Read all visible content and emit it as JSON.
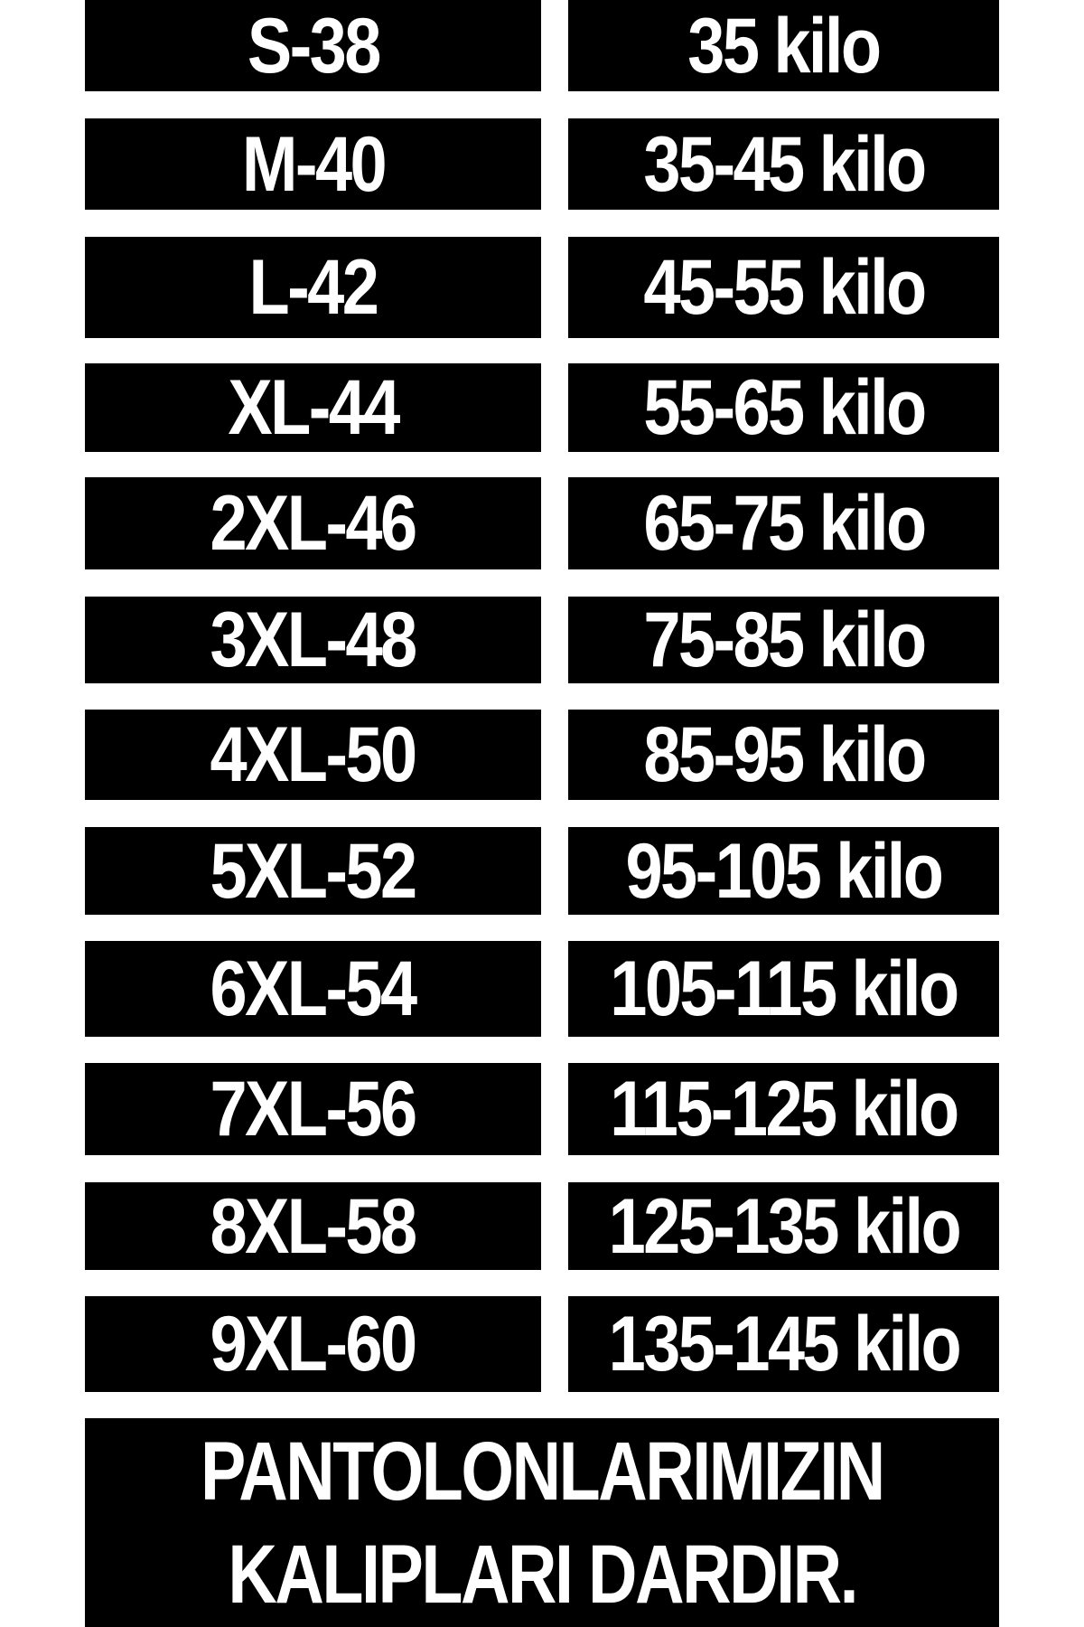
{
  "size_chart": {
    "rows": [
      {
        "size": "S-38",
        "weight": "35 kilo"
      },
      {
        "size": "M-40",
        "weight": "35-45 kilo"
      },
      {
        "size": "L-42",
        "weight": "45-55 kilo"
      },
      {
        "size": "XL-44",
        "weight": "55-65 kilo"
      },
      {
        "size": "2XL-46",
        "weight": "65-75 kilo"
      },
      {
        "size": "3XL-48",
        "weight": "75-85 kilo"
      },
      {
        "size": "4XL-50",
        "weight": "85-95 kilo"
      },
      {
        "size": "5XL-52",
        "weight": "95-105 kilo"
      },
      {
        "size": "6XL-54",
        "weight": "105-115 kilo"
      },
      {
        "size": "7XL-56",
        "weight": "115-125 kilo"
      },
      {
        "size": "8XL-58",
        "weight": "125-135 kilo"
      },
      {
        "size": "9XL-60",
        "weight": "135-145 kilo"
      }
    ],
    "note_line1": "PANTOLONLARIMIZIN",
    "note_line2": "KALIPLARI DARDIR."
  }
}
